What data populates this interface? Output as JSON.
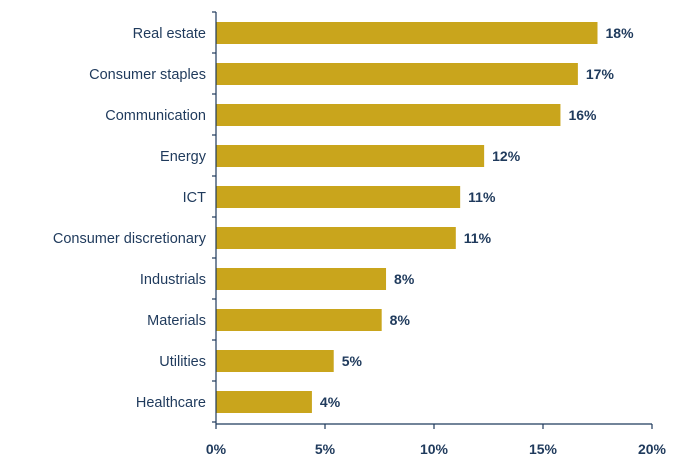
{
  "chart_data": {
    "type": "bar",
    "orientation": "horizontal",
    "title": "",
    "xlabel": "",
    "ylabel": "",
    "categories": [
      "Real estate",
      "Consumer staples",
      "Communication",
      "Energy",
      "ICT",
      "Consumer discretionary",
      "Industrials",
      "Materials",
      "Utilities",
      "Healthcare"
    ],
    "values": [
      17.5,
      16.6,
      15.8,
      12.3,
      11.2,
      11.0,
      7.8,
      7.6,
      5.4,
      4.4
    ],
    "value_labels": [
      "18%",
      "17%",
      "16%",
      "12%",
      "11%",
      "11%",
      "8%",
      "8%",
      "5%",
      "4%"
    ],
    "xlim": [
      0,
      20
    ],
    "x_ticks": [
      0,
      5,
      10,
      15,
      20
    ],
    "x_tick_labels": [
      "0%",
      "5%",
      "10%",
      "15%",
      "20%"
    ],
    "grid": false,
    "legend": "none",
    "bar_color": "#c9a51c",
    "text_color": "#1f3a5c"
  }
}
